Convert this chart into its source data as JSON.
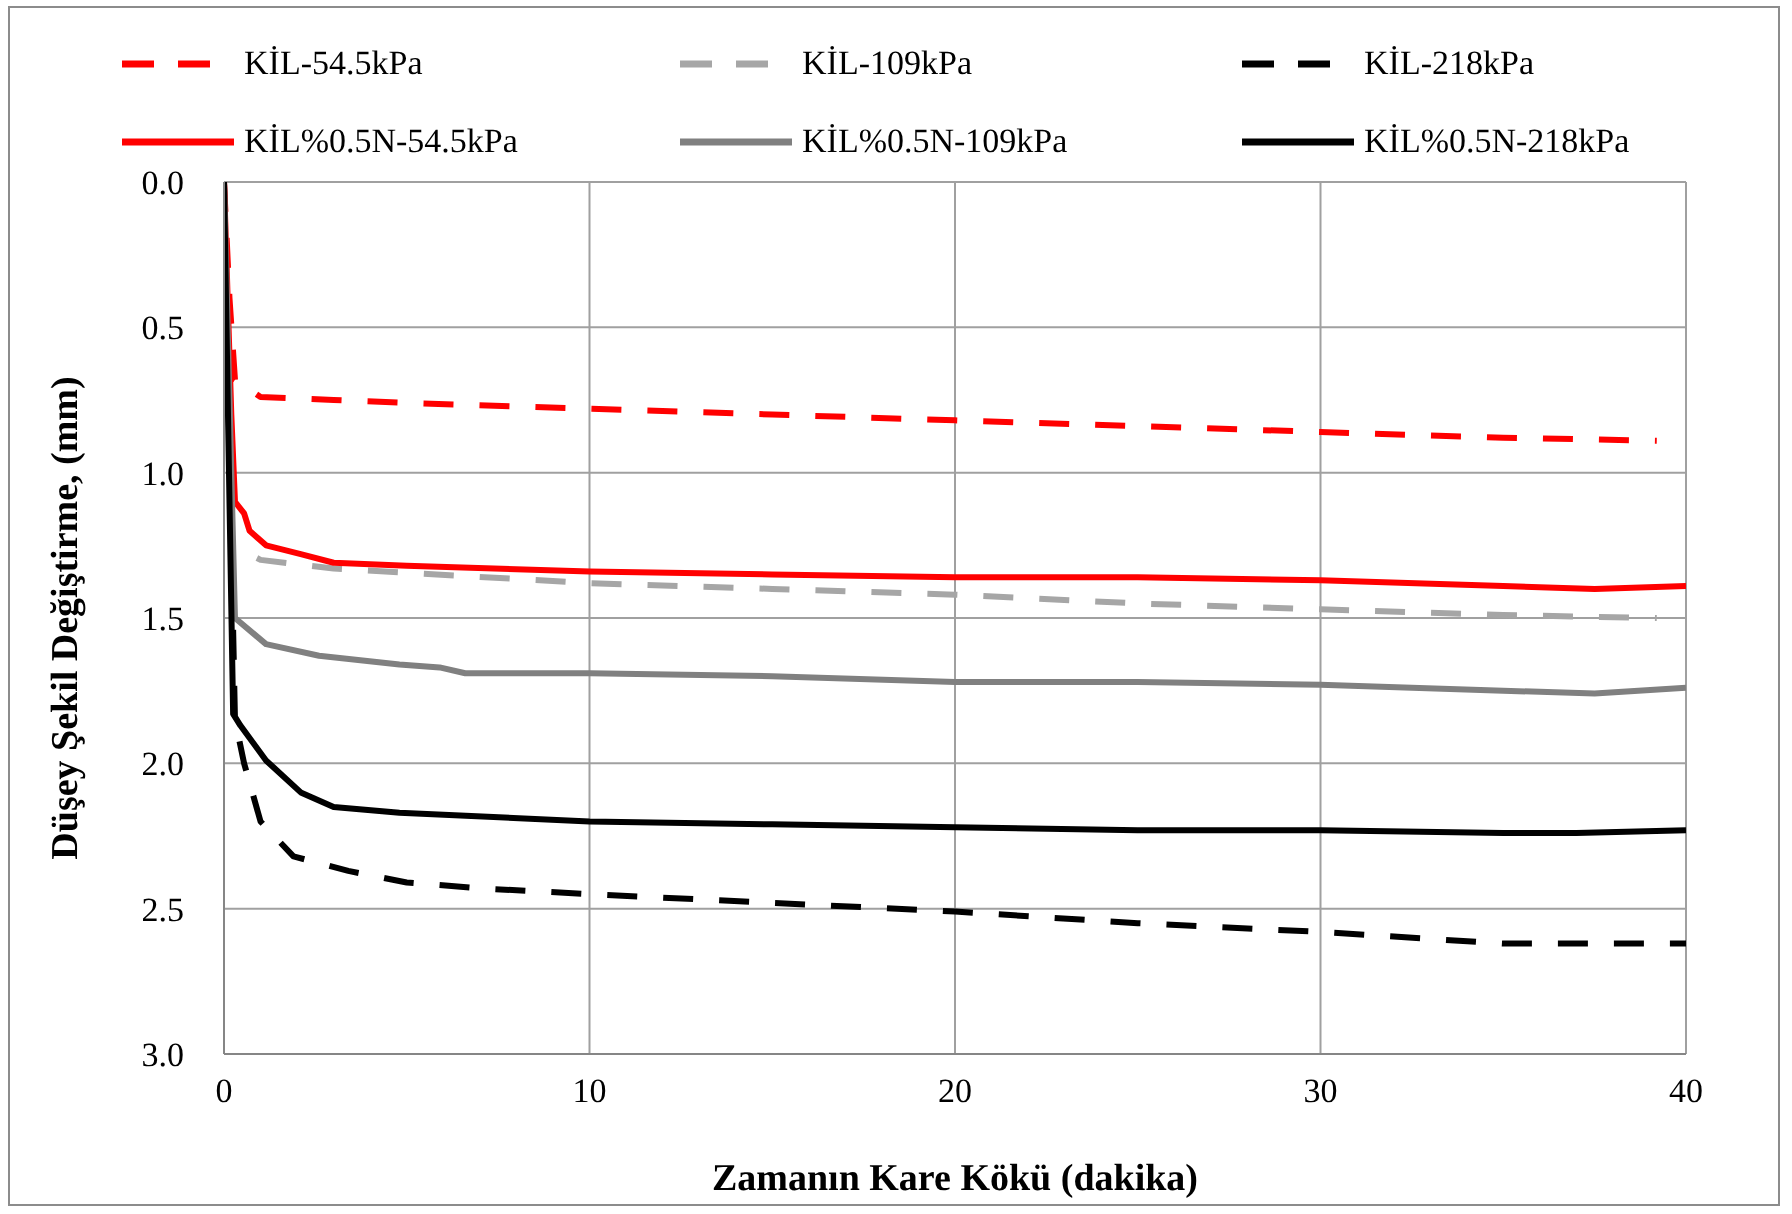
{
  "chart_data": {
    "type": "line",
    "xlabel": "Zamanın Kare Kökü (dakika)",
    "ylabel": "Düşey Şekil Değiştirme, (mm)",
    "xlim": [
      0,
      40
    ],
    "xticks": [
      0,
      10,
      20,
      30,
      40
    ],
    "ylim": [
      3,
      0
    ],
    "yticks": [
      {
        "value": 0,
        "label": "0.0"
      },
      0.5,
      {
        "value": 1,
        "label": "1.0"
      },
      1.5,
      {
        "value": 2,
        "label": "2.0"
      },
      2.5,
      {
        "value": 3,
        "label": "3.0"
      }
    ],
    "grid": true,
    "legend": "top",
    "series": [
      {
        "name": "KİL-54.5kPa",
        "color": "#ff0000",
        "line_style": "dashed",
        "x": [
          0,
          0.15,
          0.3,
          1,
          3,
          5,
          10,
          15,
          20,
          25,
          30,
          35,
          39.2
        ],
        "values": [
          0,
          0.4,
          0.68,
          0.74,
          0.75,
          0.76,
          0.78,
          0.8,
          0.82,
          0.84,
          0.86,
          0.88,
          0.89
        ]
      },
      {
        "name": "KİL-109kPa",
        "color": "#a6a6a6",
        "line_style": "dashed",
        "x": [
          0,
          0.2,
          1,
          3,
          10,
          15,
          20,
          25,
          30,
          35,
          39.2
        ],
        "values": [
          0,
          1.25,
          1.3,
          1.33,
          1.38,
          1.4,
          1.42,
          1.45,
          1.47,
          1.49,
          1.5
        ]
      },
      {
        "name": "KİL-218kPa",
        "color": "#000000",
        "line_style": "dashed",
        "x": [
          0,
          0.3,
          0.55,
          1,
          1.9,
          3.4,
          5,
          7,
          10,
          15,
          20,
          25,
          30,
          35,
          40
        ],
        "values": [
          0,
          1.85,
          2,
          2.2,
          2.32,
          2.37,
          2.41,
          2.43,
          2.45,
          2.48,
          2.51,
          2.55,
          2.58,
          2.62,
          2.62
        ]
      },
      {
        "name": "KİL%0.5N-54.5kPa",
        "color": "#ff0000",
        "line_style": "solid",
        "x": [
          0,
          0.2,
          0.3,
          0.55,
          0.7,
          1.15,
          2.1,
          3,
          5,
          10,
          15,
          20,
          25,
          30,
          35,
          37.5,
          40
        ],
        "values": [
          0,
          0.8,
          1.1,
          1.14,
          1.2,
          1.25,
          1.28,
          1.31,
          1.32,
          1.34,
          1.35,
          1.36,
          1.36,
          1.37,
          1.39,
          1.4,
          1.39
        ]
      },
      {
        "name": "KİL%0.5N-109kPa",
        "color": "#808080",
        "line_style": "solid",
        "x": [
          0,
          0.3,
          1.15,
          2.6,
          4.8,
          5.9,
          6.6,
          10,
          15,
          20,
          25,
          30,
          35,
          37.5,
          40
        ],
        "values": [
          0,
          1.5,
          1.59,
          1.63,
          1.66,
          1.67,
          1.69,
          1.69,
          1.7,
          1.72,
          1.72,
          1.73,
          1.75,
          1.76,
          1.74
        ]
      },
      {
        "name": "KİL%0.5N-218kPa",
        "color": "#000000",
        "line_style": "solid",
        "x": [
          0,
          0.25,
          0.45,
          1.15,
          2.1,
          3,
          4.8,
          10,
          15,
          20,
          25,
          30,
          35,
          37,
          40
        ],
        "values": [
          0,
          1.83,
          1.87,
          1.99,
          2.1,
          2.15,
          2.17,
          2.2,
          2.21,
          2.22,
          2.23,
          2.23,
          2.24,
          2.24,
          2.23
        ]
      }
    ]
  }
}
